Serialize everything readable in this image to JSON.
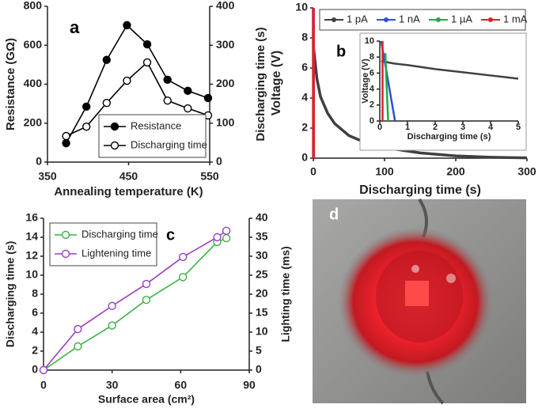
{
  "chart_data": [
    {
      "type": "line",
      "label": "a",
      "xlabel": "Annealing temperature (K)",
      "ylabel": "Resistance (GΩ)",
      "y2label": "Discharging time (s)",
      "x": [
        373,
        398,
        423,
        448,
        473,
        498,
        523,
        548
      ],
      "xlim": [
        350,
        550
      ],
      "xticks": [
        350,
        450,
        550
      ],
      "ylim": [
        0,
        800
      ],
      "yticks": [
        0,
        200,
        400,
        600,
        800
      ],
      "y2lim": [
        0,
        400
      ],
      "y2ticks": [
        0,
        100,
        200,
        300,
        400
      ],
      "legend": "lower right",
      "series": [
        {
          "name": "Resistance",
          "color": "#000000",
          "marker": "filled",
          "values": [
            97,
            285,
            525,
            703,
            605,
            423,
            366,
            329
          ]
        },
        {
          "name": "Discharging time",
          "color": "#000000",
          "marker": "open",
          "axis": "y2",
          "values": [
            67,
            91,
            152,
            209,
            256,
            158,
            138,
            120
          ]
        }
      ]
    },
    {
      "type": "line",
      "label": "b",
      "xlabel": "Discharging time (s)",
      "ylabel": "Voltage (V)",
      "xlim": [
        0,
        300
      ],
      "xticks": [
        0,
        100,
        200,
        300
      ],
      "ylim": [
        0,
        10
      ],
      "yticks": [
        0,
        2,
        4,
        6,
        8,
        10
      ],
      "legend": "top",
      "series": [
        {
          "name": "1 pA",
          "color": "#404040",
          "x": [
            0,
            5,
            10,
            20,
            30,
            50,
            75,
            100,
            150,
            200,
            250,
            300
          ],
          "values": [
            7.5,
            5.3,
            4.1,
            3.0,
            2.3,
            1.5,
            1.0,
            0.7,
            0.35,
            0.15,
            0.06,
            0.02
          ]
        },
        {
          "name": "1 nA",
          "color": "#2e4fd8",
          "x": [
            0,
            0.5
          ],
          "values": [
            10,
            0
          ]
        },
        {
          "name": "1 µA",
          "color": "#22a84a",
          "x": [
            0.2,
            0.3
          ],
          "values": [
            8.5,
            0
          ]
        },
        {
          "name": "1 mA",
          "color": "#e0202a",
          "x": [
            0.1,
            0.1
          ],
          "values": [
            10,
            0
          ]
        }
      ]
    },
    {
      "type": "line",
      "xlabel": "Discharging time (s)",
      "ylabel": "Voltage (V)",
      "xlim": [
        0,
        5
      ],
      "xticks": [
        0,
        1,
        2,
        3,
        4,
        5
      ],
      "ylim": [
        0,
        10
      ],
      "yticks": [
        0,
        2,
        4,
        6,
        8,
        10
      ],
      "series": [
        {
          "color": "#404040",
          "x": [
            0.05,
            0.2,
            0.5,
            1,
            2,
            3,
            4,
            5
          ],
          "values": [
            7.5,
            7.4,
            7.2,
            7.0,
            6.5,
            6.1,
            5.7,
            5.3
          ]
        },
        {
          "color": "#2e4fd8",
          "x": [
            0.05,
            0.55
          ],
          "values": [
            10,
            0
          ]
        },
        {
          "color": "#22a84a",
          "x": [
            0.2,
            0.3
          ],
          "values": [
            8.5,
            0
          ]
        },
        {
          "color": "#e0202a",
          "x": [
            0.1,
            0.1
          ],
          "values": [
            10,
            0
          ]
        }
      ]
    },
    {
      "type": "line",
      "label": "c",
      "xlabel": "Surface area (cm²)",
      "ylabel": "Discharging time (s)",
      "y2label": "Lighting time (ms)",
      "x": [
        0,
        15,
        30,
        45,
        61,
        76,
        80
      ],
      "xlim": [
        0,
        90
      ],
      "xticks": [
        0,
        30,
        60,
        90
      ],
      "ylim": [
        0,
        16
      ],
      "yticks": [
        0,
        2,
        4,
        6,
        8,
        10,
        12,
        14,
        16
      ],
      "y2lim": [
        0,
        40
      ],
      "y2ticks": [
        0,
        5,
        10,
        15,
        20,
        25,
        30,
        35,
        40
      ],
      "legend": "upper left",
      "series": [
        {
          "name": "Discharging time",
          "color": "#3cb043",
          "marker": "open",
          "values": [
            0,
            2.5,
            4.7,
            7.4,
            9.8,
            13.5,
            13.9
          ]
        },
        {
          "name": "Lightening time",
          "color": "#9b3fbf",
          "marker": "open",
          "axis": "y2",
          "values": [
            0,
            10.8,
            16.9,
            22.7,
            29.8,
            35,
            36.7
          ]
        }
      ]
    },
    {
      "type": "image",
      "label": "d"
    }
  ]
}
